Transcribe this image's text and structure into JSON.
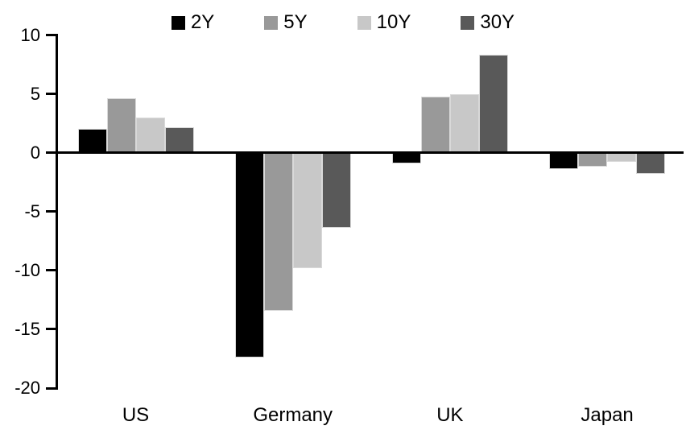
{
  "chart_data": {
    "type": "bar",
    "title": "",
    "xlabel": "",
    "ylabel": "",
    "categories": [
      "US",
      "Germany",
      "UK",
      "Japan"
    ],
    "series": [
      {
        "name": "2Y",
        "color": "#000000",
        "values": [
          2.0,
          -17.4,
          -0.9,
          -1.4
        ]
      },
      {
        "name": "5Y",
        "color": "#999999",
        "values": [
          4.6,
          -13.4,
          4.8,
          -1.2
        ]
      },
      {
        "name": "10Y",
        "color": "#c8c8c8",
        "values": [
          3.0,
          -9.8,
          5.0,
          -0.8
        ]
      },
      {
        "name": "30Y",
        "color": "#595959",
        "values": [
          2.2,
          -6.4,
          8.3,
          -1.8
        ]
      }
    ],
    "ylim": [
      -20,
      10
    ],
    "yticks": [
      10,
      5,
      0,
      -5,
      -10,
      -15,
      -20
    ],
    "legend_position": "top",
    "grid": false,
    "axis_color": "#000000",
    "background": "#ffffff",
    "bar_edge_color": "#d9d9d9"
  }
}
